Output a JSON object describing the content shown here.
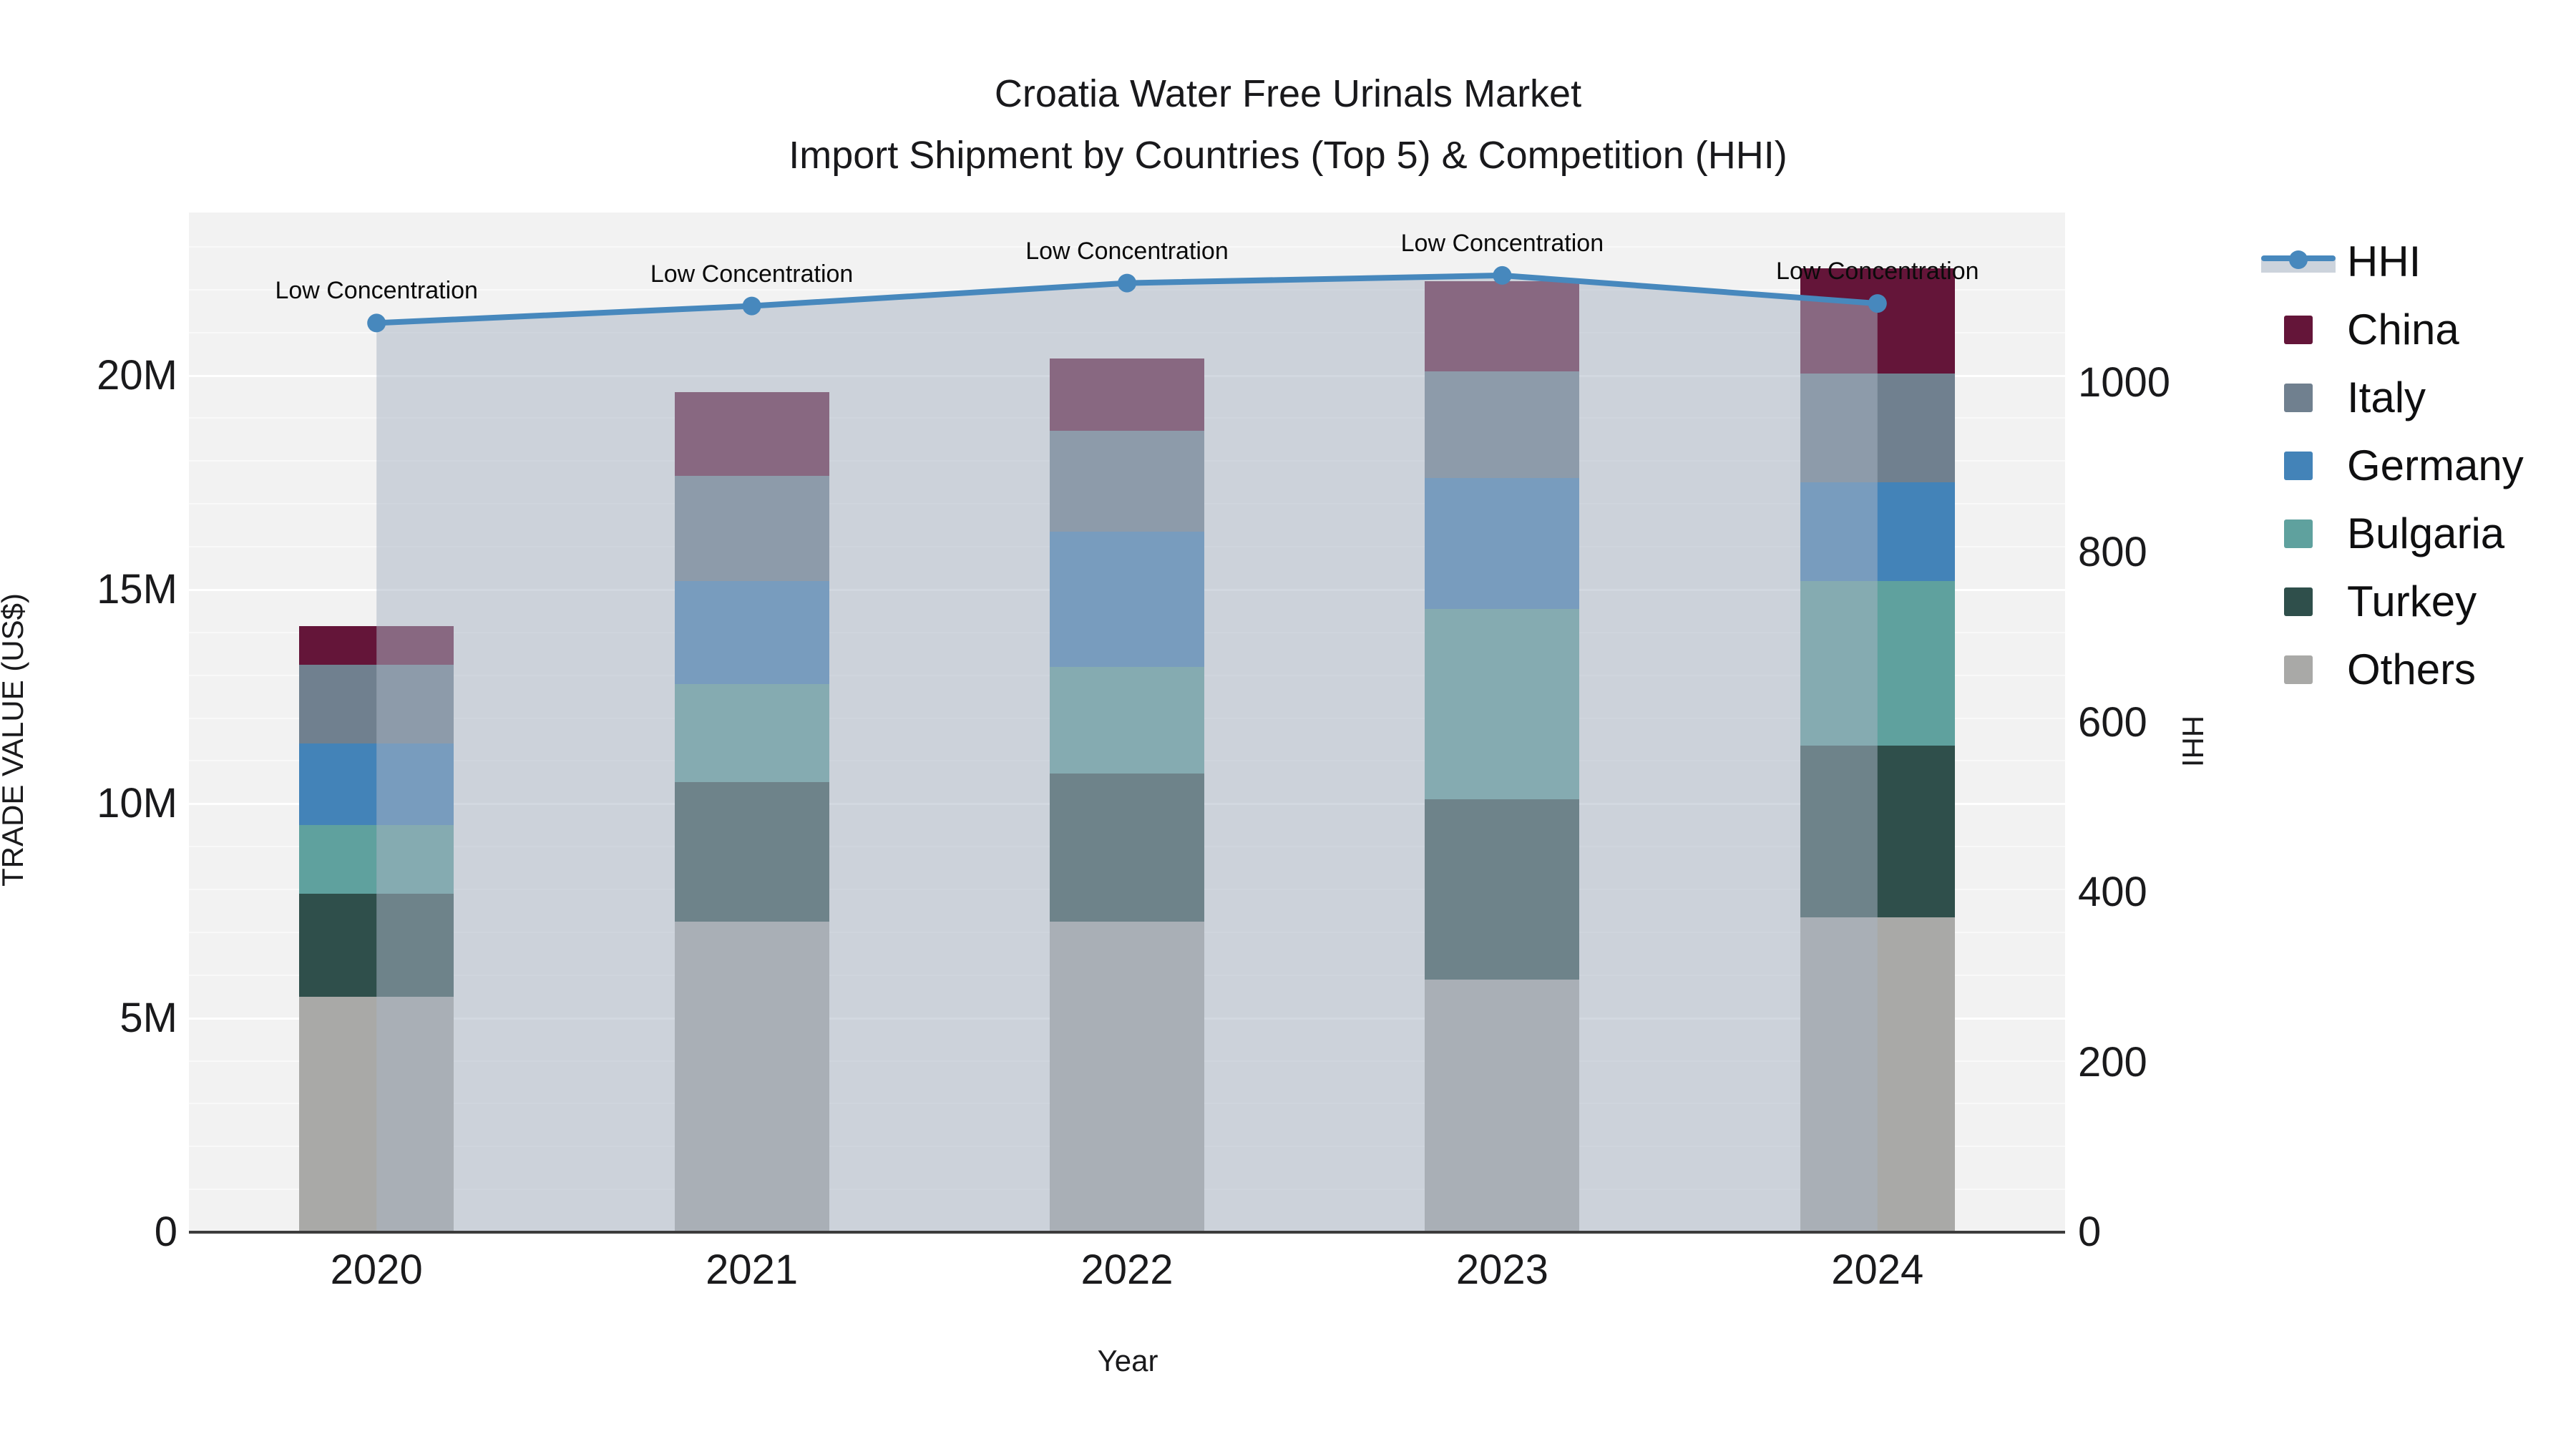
{
  "title": {
    "line1": "Croatia Water Free Urinals Market",
    "line2": "Import Shipment by Countries (Top 5) & Competition (HHI)"
  },
  "axes": {
    "y_left": {
      "title": "TRADE VALUE (US$)"
    },
    "y_right": {
      "title": "HHI"
    },
    "x": {
      "title": "Year"
    }
  },
  "legend": {
    "items": [
      {
        "label": "HHI",
        "type": "line",
        "color": "#4788bd"
      },
      {
        "label": "China",
        "type": "square",
        "color": "#641539"
      },
      {
        "label": "Italy",
        "type": "square",
        "color": "#70808f"
      },
      {
        "label": "Germany",
        "type": "square",
        "color": "#4383b8"
      },
      {
        "label": "Bulgaria",
        "type": "square",
        "color": "#5fa19e"
      },
      {
        "label": "Turkey",
        "type": "square",
        "color": "#2f4f4b"
      },
      {
        "label": "Others",
        "type": "square",
        "color": "#a9a9a7"
      }
    ]
  },
  "colors": {
    "plot_bg": "#f2f2f2",
    "grid_minor": "rgba(255,255,255,0.55)",
    "grid_major": "#ffffff",
    "axis_line": "#3c3c3c",
    "hhi_line": "#4788bd",
    "area_fill": "#a9b5c4",
    "area_opacity": 0.52,
    "text": "#1a1a1a"
  },
  "chart_data": {
    "type": "bar",
    "subtype": "stacked-bars-with-line-dual-axis",
    "title": "Croatia Water Free Urinals Market — Import Shipment by Countries (Top 5) & Competition (HHI)",
    "xlabel": "Year",
    "ylabel_left": "TRADE VALUE (US$)",
    "ylabel_right": "HHI",
    "categories": [
      "2020",
      "2021",
      "2022",
      "2023",
      "2024"
    ],
    "series": [
      {
        "name": "Others",
        "color": "#a9a9a7",
        "values": [
          5.5,
          7.25,
          7.25,
          5.9,
          7.35
        ]
      },
      {
        "name": "Turkey",
        "color": "#2f4f4b",
        "values": [
          2.4,
          3.25,
          3.45,
          4.2,
          4.0
        ]
      },
      {
        "name": "Bulgaria",
        "color": "#5fa19e",
        "values": [
          1.6,
          2.3,
          2.5,
          4.45,
          3.85
        ]
      },
      {
        "name": "Germany",
        "color": "#4383b8",
        "values": [
          1.9,
          2.4,
          3.15,
          3.05,
          2.3
        ]
      },
      {
        "name": "Italy",
        "color": "#70808f",
        "values": [
          1.85,
          2.45,
          2.35,
          2.5,
          2.55
        ]
      },
      {
        "name": "China",
        "color": "#641539",
        "values": [
          0.9,
          1.95,
          1.7,
          2.1,
          2.45
        ]
      }
    ],
    "totals_millions": [
      14.15,
      19.6,
      20.4,
      22.2,
      22.5
    ],
    "line_series": {
      "name": "HHI",
      "axis": "right",
      "color": "#4788bd",
      "values": [
        1070,
        1090,
        1117,
        1126,
        1093
      ]
    },
    "annotations": [
      "Low Concentration",
      "Low Concentration",
      "Low Concentration",
      "Low Concentration",
      "Low Concentration"
    ],
    "value_unit_left": "millions USD",
    "y_left": {
      "max": 23.8,
      "ticks": [
        {
          "v": 0,
          "label": "0"
        },
        {
          "v": 5,
          "label": "5M"
        },
        {
          "v": 10,
          "label": "10M"
        },
        {
          "v": 15,
          "label": "15M"
        },
        {
          "v": 20,
          "label": "20M"
        }
      ],
      "minor_step": 1
    },
    "y_right": {
      "max": 1200,
      "ticks": [
        {
          "v": 0,
          "label": "0"
        },
        {
          "v": 200,
          "label": "200"
        },
        {
          "v": 400,
          "label": "400"
        },
        {
          "v": 600,
          "label": "600"
        },
        {
          "v": 800,
          "label": "800"
        },
        {
          "v": 1000,
          "label": "1000"
        }
      ]
    },
    "grid": true,
    "legend_position": "right",
    "area_under_line": true
  }
}
